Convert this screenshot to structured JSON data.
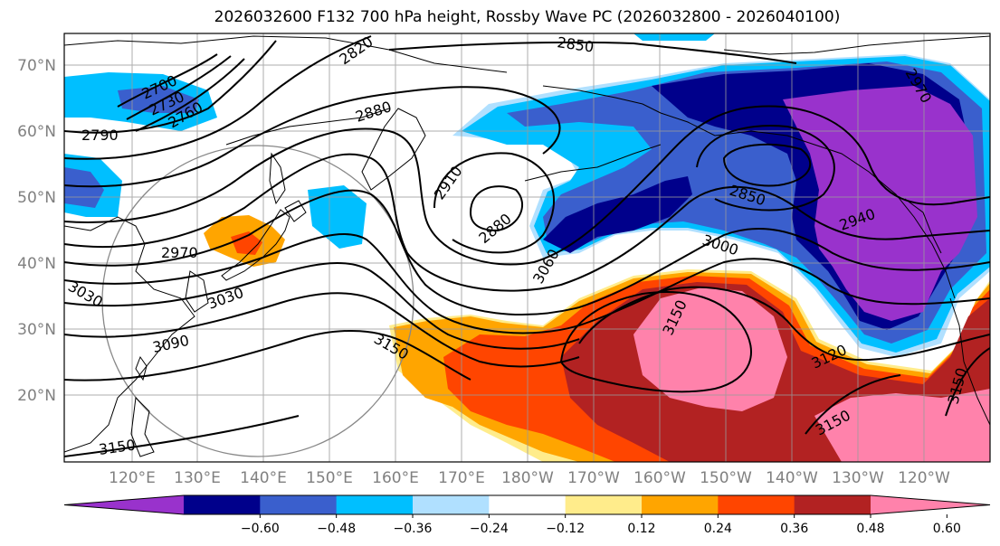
{
  "title": "2026032600 F132 700 hPa height, Rossby Wave PC (2026032800 - 2026040100)",
  "lat_labels": [
    "70°N",
    "60°N",
    "50°N",
    "40°N",
    "30°N",
    "20°N"
  ],
  "lon_labels": [
    "120°E",
    "130°E",
    "140°E",
    "150°E",
    "160°E",
    "170°E",
    "180°W",
    "170°W",
    "160°W",
    "150°W",
    "140°W",
    "130°W",
    "120°W"
  ],
  "contour_labels": [
    "2700",
    "2730",
    "2760",
    "2790",
    "2820",
    "2850",
    "2880",
    "2910",
    "2880",
    "2850",
    "2940",
    "2970",
    "3000",
    "3030",
    "3060",
    "3090",
    "3120",
    "3150",
    "3150",
    "3150",
    "3150",
    "3150",
    "3030",
    "2970"
  ],
  "colorbar": {
    "colors": [
      "#9932cc",
      "#00008b",
      "#3a5fcd",
      "#00bfff",
      "#b0e0ff",
      "#ffffff",
      "#ffec8b",
      "#ffa500",
      "#ff4500",
      "#b22222",
      "#ff82ab"
    ],
    "tick_labels": [
      "−0.60",
      "−0.48",
      "−0.36",
      "−0.24",
      "−0.12",
      "0.12",
      "0.24",
      "0.36",
      "0.48",
      "0.60"
    ]
  }
}
